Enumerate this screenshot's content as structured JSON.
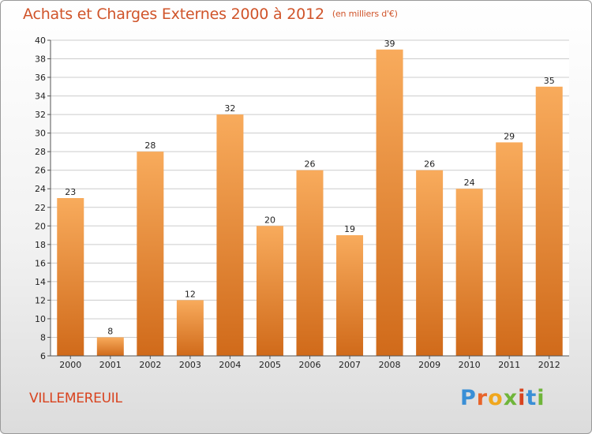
{
  "title": "Achats et Charges Externes 2000 à 2012",
  "unit": "(en milliers d'€)",
  "commune": "VILLEMEREUIL",
  "logo": "Proxiti",
  "colors": {
    "title": "#d0542a",
    "bar_light": "#f8ab5c",
    "bar_dark": "#d06a1a",
    "grid": "#cccccc",
    "commune": "#d8431f"
  },
  "chart_data": {
    "type": "bar",
    "categories": [
      "2000",
      "2001",
      "2002",
      "2003",
      "2004",
      "2005",
      "2006",
      "2007",
      "2008",
      "2009",
      "2010",
      "2011",
      "2012"
    ],
    "values": [
      23,
      8,
      28,
      12,
      32,
      20,
      26,
      19,
      39,
      26,
      24,
      29,
      35
    ],
    "title": "Achats et Charges Externes 2000 à 2012",
    "ylim": [
      6,
      40
    ],
    "ytick_step": 2,
    "grid": true
  }
}
